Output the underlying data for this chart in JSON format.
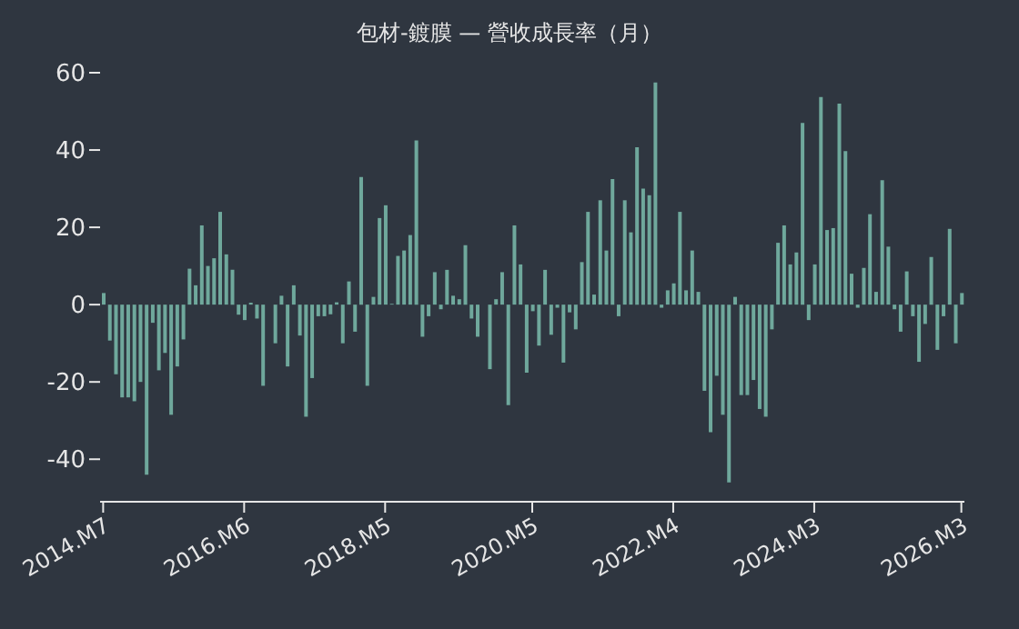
{
  "chart_data": {
    "type": "bar",
    "title": "包材-鍍膜 — 營收成長率（月）",
    "categories": [
      "2014.M7",
      null,
      null,
      null,
      null,
      null,
      null,
      null,
      null,
      null,
      null,
      null,
      null,
      null,
      null,
      null,
      null,
      null,
      null,
      null,
      null,
      null,
      null,
      "2016.M6",
      null,
      null,
      null,
      null,
      null,
      null,
      null,
      null,
      null,
      null,
      null,
      null,
      null,
      null,
      null,
      null,
      null,
      null,
      null,
      null,
      null,
      null,
      "2018.M5",
      null,
      null,
      null,
      null,
      null,
      null,
      null,
      null,
      null,
      null,
      null,
      null,
      null,
      null,
      null,
      null,
      null,
      null,
      null,
      null,
      null,
      null,
      null,
      "2020.M5",
      null,
      null,
      null,
      null,
      null,
      null,
      null,
      null,
      null,
      null,
      null,
      null,
      null,
      null,
      null,
      null,
      null,
      null,
      null,
      null,
      null,
      null,
      "2022.M4",
      null,
      null,
      null,
      null,
      null,
      null,
      null,
      null,
      null,
      null,
      null,
      null,
      null,
      null,
      null,
      null,
      null,
      null,
      null,
      null,
      null,
      null,
      "2024.M3",
      null,
      null,
      null,
      null,
      null,
      null,
      null,
      null,
      null,
      null,
      null,
      null,
      null,
      null,
      null,
      null,
      null,
      null,
      null,
      null,
      null,
      null,
      null,
      "2026.M3"
    ],
    "values": [
      3,
      -9.3,
      -18,
      -24,
      -24,
      -25,
      -20,
      -44,
      -4.7,
      -17,
      -12.5,
      -28.5,
      -16,
      -9,
      9.3,
      5,
      20.5,
      10,
      12,
      24,
      13,
      9,
      -2.6,
      -4,
      0.5,
      -3.6,
      -21,
      0,
      -10,
      2.3,
      -16,
      5,
      -8,
      -29,
      -19,
      -3,
      -3,
      -2.5,
      0.6,
      -10,
      6,
      -7,
      33,
      -21,
      2,
      22.4,
      25.7,
      0.2,
      12.6,
      14,
      18,
      42.5,
      -8.3,
      -3,
      8.4,
      -1.2,
      9,
      2.3,
      1.4,
      15.4,
      -3.6,
      -8.3,
      0,
      -16.7,
      1.4,
      8.4,
      -26,
      20.5,
      10.4,
      -17.6,
      -1.7,
      -10.6,
      9,
      -7.8,
      -0.8,
      -15,
      -2,
      -6.4,
      11,
      24,
      2.6,
      27,
      14,
      32.5,
      -3,
      27,
      18.7,
      40.7,
      30,
      28.3,
      57.5,
      -0.8,
      3.7,
      5.5,
      24,
      3.7,
      14,
      3.3,
      -22.3,
      -33,
      -18.4,
      -28.5,
      -46,
      2,
      -23.4,
      -23.4,
      -19.5,
      -27,
      -29,
      -6.4,
      16,
      20.5,
      10.4,
      13.5,
      47,
      -4,
      10.4,
      53.7,
      19.3,
      19.8,
      52,
      39.7,
      8,
      -0.8,
      9.5,
      23.4,
      3.3,
      32.2,
      15,
      -1.2,
      -7,
      8.6,
      -3,
      -14.8,
      -5,
      12.3,
      -11.7,
      -3,
      19.6,
      -10,
      3
    ],
    "color": "#6fa89c",
    "ylim": [
      -51,
      60
    ],
    "yticks": [
      -40,
      -20,
      0,
      20,
      40,
      60
    ],
    "grid": false,
    "legend": false
  }
}
